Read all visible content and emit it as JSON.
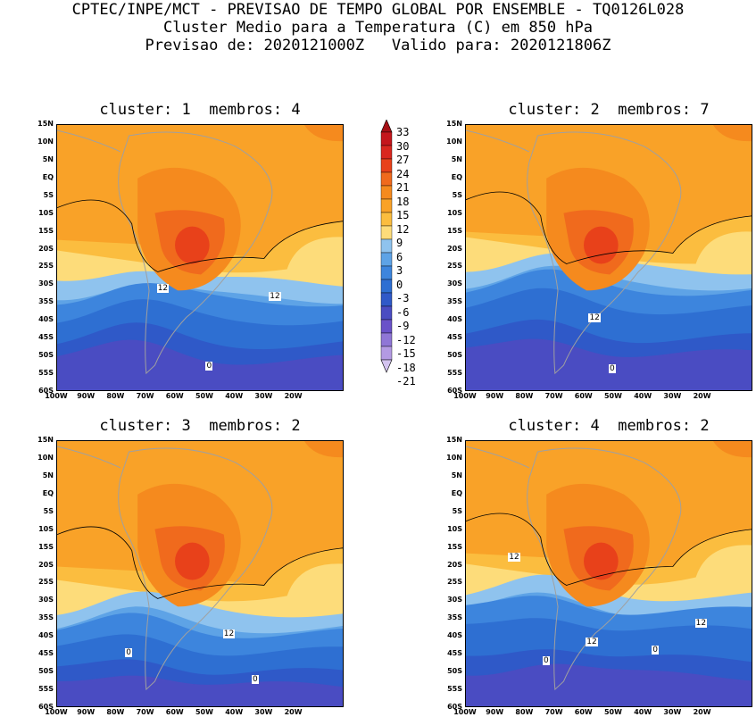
{
  "header": {
    "line1": "CPTEC/INPE/MCT - PREVISAO DE TEMPO GLOBAL POR ENSEMBLE - TQ0126L028",
    "line2": "Cluster Medio para a Temperatura (C) em 850 hPa",
    "line3": "Previsao de: 2020121000Z   Valido para: 2020121806Z"
  },
  "panels": [
    {
      "title": "cluster: 1  membros: 4",
      "contour_labels": [
        "12",
        "12",
        "0"
      ]
    },
    {
      "title": "cluster: 2  membros: 7",
      "contour_labels": [
        "12",
        "0"
      ]
    },
    {
      "title": "cluster: 3  membros: 2",
      "contour_labels": [
        "12",
        "0",
        "0"
      ]
    },
    {
      "title": "cluster: 4  membros: 2",
      "contour_labels": [
        "12",
        "12",
        "12",
        "0",
        "0"
      ]
    }
  ],
  "lat_labels": [
    "15N",
    "10N",
    "5N",
    "EQ",
    "5S",
    "10S",
    "15S",
    "20S",
    "25S",
    "30S",
    "35S",
    "40S",
    "45S",
    "50S",
    "55S",
    "60S"
  ],
  "lon_labels": [
    "100W",
    "90W",
    "80W",
    "70W",
    "60W",
    "50W",
    "40W",
    "30W",
    "20W"
  ],
  "colorbar": {
    "levels": [
      "33",
      "30",
      "27",
      "24",
      "21",
      "18",
      "15",
      "12",
      "9",
      "6",
      "3",
      "0",
      "-3",
      "-6",
      "-9",
      "-12",
      "-15",
      "-18",
      "-21"
    ],
    "colors": [
      "#a50f15",
      "#c4161c",
      "#d9271f",
      "#e8411a",
      "#f06a1d",
      "#f58a1e",
      "#f9a228",
      "#fbbd3f",
      "#fddc7a",
      "#8fc3ee",
      "#5ea3e6",
      "#3d85dd",
      "#2e6fd2",
      "#2f59c8",
      "#4a4cc2",
      "#6a52c9",
      "#8f76d6",
      "#b39ae3",
      "#d3c3ef"
    ]
  },
  "colors": {
    "map_outline": "#a0a0a0",
    "contour": "#000000"
  }
}
